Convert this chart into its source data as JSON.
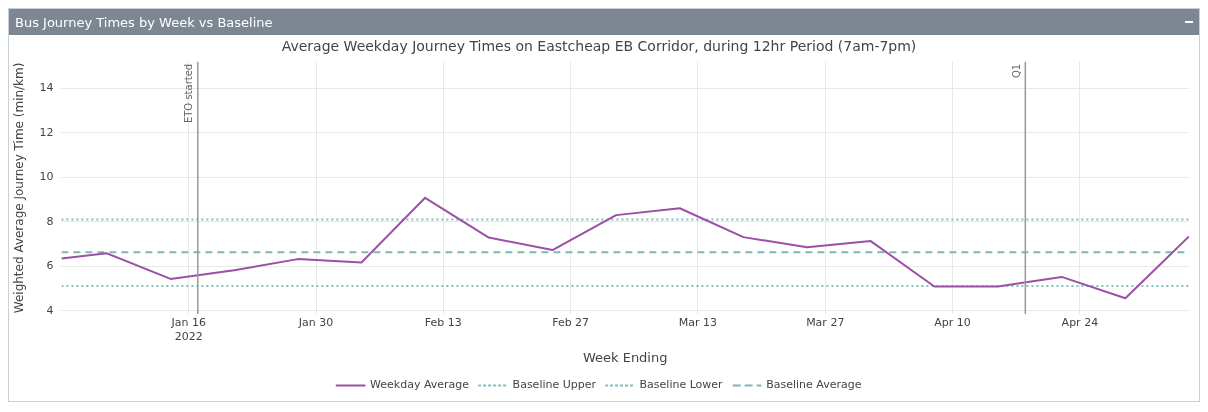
{
  "chart_data": {
    "type": "line",
    "title": "Bus Journey Times by Week vs Baseline",
    "subtitle": "Average Weekday Journey Times on Eastcheap EB Corridor, during 12hr Period (7am-7pm)",
    "xlabel": "Week Ending",
    "ylabel": "Weighted Average Journey Time (min/km)",
    "x": [
      "2022-01-02",
      "2022-01-07",
      "2022-01-14",
      "2022-01-21",
      "2022-01-28",
      "2022-02-04",
      "2022-02-11",
      "2022-02-18",
      "2022-02-25",
      "2022-03-04",
      "2022-03-11",
      "2022-03-18",
      "2022-03-25",
      "2022-04-01",
      "2022-04-08",
      "2022-04-15",
      "2022-04-22",
      "2022-04-29",
      "2022-05-06"
    ],
    "series": [
      {
        "name": "Weekday Average",
        "color": "#9c4fa6",
        "line_style": "solid",
        "values": [
          6.35,
          6.58,
          5.43,
          5.82,
          6.32,
          6.17,
          9.08,
          7.29,
          6.73,
          8.3,
          8.61,
          7.31,
          6.85,
          7.13,
          5.09,
          5.09,
          5.52,
          4.56,
          7.34
        ]
      },
      {
        "name": "Baseline Upper",
        "color": "#7fbfbc",
        "line_style": "dotted",
        "x": [
          "2022-01-02",
          "2022-05-06"
        ],
        "values": [
          8.1,
          8.1
        ]
      },
      {
        "name": "Baseline Lower",
        "color": "#7fbfbc",
        "line_style": "dotted",
        "x": [
          "2022-01-02",
          "2022-05-06"
        ],
        "values": [
          5.11,
          5.11
        ]
      },
      {
        "name": "Baseline Average",
        "color": "#7fb6b8",
        "line_style": "dashed",
        "x": [
          "2022-01-02",
          "2022-05-06"
        ],
        "values": [
          6.63,
          6.63
        ]
      }
    ],
    "ref_lines": [
      {
        "axis": "x",
        "value": "2022-01-17",
        "label": "ETO started",
        "color": "#999999"
      },
      {
        "axis": "x",
        "value": "2022-04-18",
        "label": "Q1",
        "color": "#999999"
      }
    ],
    "xlim": [
      "2022-01-02",
      "2022-05-06"
    ],
    "xticks": [
      {
        "value": "2022-01-16",
        "label": "Jan 16\n2022"
      },
      {
        "value": "2022-01-30",
        "label": "Jan 30"
      },
      {
        "value": "2022-02-13",
        "label": "Feb 13"
      },
      {
        "value": "2022-02-27",
        "label": "Feb 27"
      },
      {
        "value": "2022-03-13",
        "label": "Mar 13"
      },
      {
        "value": "2022-03-27",
        "label": "Mar 27"
      },
      {
        "value": "2022-04-10",
        "label": "Apr 10"
      },
      {
        "value": "2022-04-24",
        "label": "Apr 24"
      }
    ],
    "ylim": [
      3.85,
      15.2
    ],
    "yticks": [
      4,
      6,
      8,
      10,
      12,
      14
    ],
    "grid": true,
    "legend": "bottom",
    "marker": "none"
  }
}
